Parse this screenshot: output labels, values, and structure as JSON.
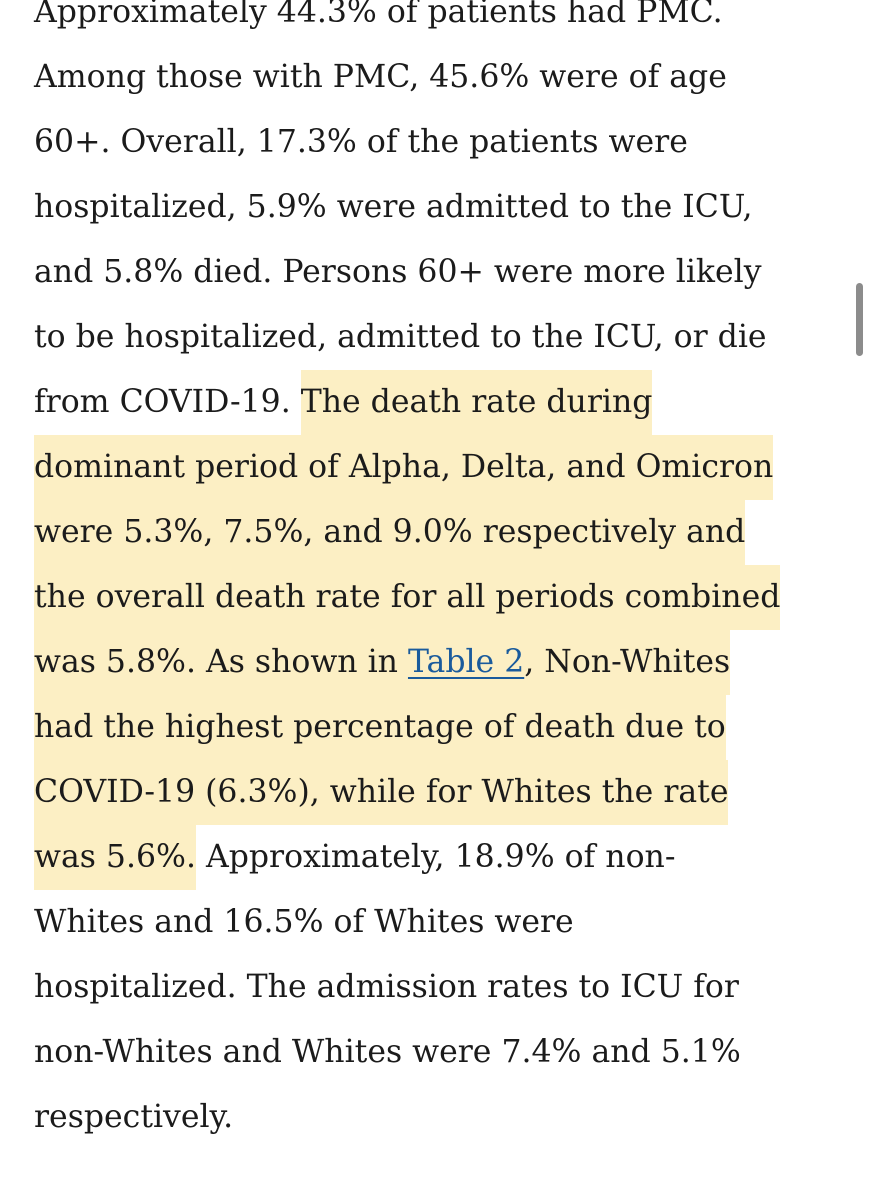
{
  "article": {
    "lines": [
      {
        "pre": "Approximately 44.3% of patients had PMC."
      },
      {
        "pre": "Among those with PMC, 45.6% were of age"
      },
      {
        "pre": "60+. Overall, 17.3% of the patients were"
      },
      {
        "pre": "hospitalized, 5.9% were admitted to the ICU,"
      },
      {
        "pre": "and 5.8% died. Persons 60+ were more likely"
      },
      {
        "pre": "to be hospitalized, admitted to the ICU, or die"
      },
      {
        "pre": "from COVID-19. ",
        "hl": "The death rate during"
      },
      {
        "hl": "dominant period of Alpha, Delta, and Omicron"
      },
      {
        "hl": "were 5.3%, 7.5%, and 9.0% respectively and"
      },
      {
        "hl": "the overall death rate for all periods combined"
      },
      {
        "hl_pre": "was 5.8%. As shown in ",
        "link": "Table 2",
        "hl_post": ", Non-Whites"
      },
      {
        "hl": "had the highest percentage of death due to"
      },
      {
        "hl": "COVID-19 (6.3%), while for Whites the rate"
      },
      {
        "hl": "was 5.6%.",
        "post": " Approximately, 18.9% of non-"
      },
      {
        "pre": "Whites and 16.5% of Whites were"
      },
      {
        "pre": "hospitalized. The admission rates to ICU for"
      },
      {
        "pre": "non-Whites and Whites were 7.4% and 5.1%"
      },
      {
        "pre": "respectively."
      }
    ]
  },
  "colors": {
    "text": "#1b1b1b",
    "highlight": "#fcefc4",
    "link": "#1a5b9c",
    "scrollbar": "#8c8c8c"
  }
}
